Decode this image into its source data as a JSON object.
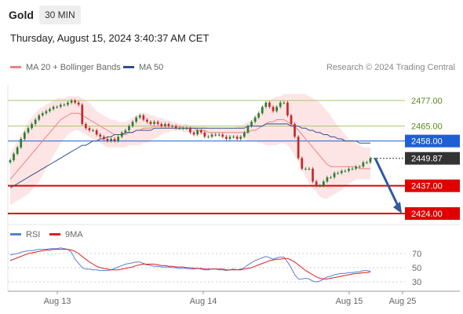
{
  "header": {
    "instrument": "Gold",
    "timeframe": "30 MIN",
    "datetime": "Thursday, August 15, 2024 3:40:37 AM CET"
  },
  "legend": {
    "ma20": {
      "label": "MA 20 + Bollinger Bands",
      "color": "#f08080"
    },
    "ma50": {
      "label": "MA 50",
      "color": "#2e4f8f"
    },
    "credit": "Research © 2024 Trading Central"
  },
  "sub_legend": {
    "rsi": {
      "label": "RSI",
      "color": "#5b7fd6"
    },
    "ma9": {
      "label": "9MA",
      "color": "#e02020"
    }
  },
  "colors": {
    "up_candle": "#2e7d32",
    "down_candle": "#c62828",
    "resistance": "#a5c96a",
    "pivot": "#1f5fd6",
    "support": "#e00000",
    "current": "#333333",
    "bollinger_fill": "#fde0e0",
    "arrow": "#2e5b9f"
  },
  "chart_data": [
    {
      "type": "candlestick",
      "title": "Gold 30 MIN",
      "xlabels": [
        "Aug 13",
        "Aug 14",
        "Aug 15",
        "Aug 25"
      ],
      "ylim": [
        2420,
        2484
      ],
      "levels": [
        {
          "value": 2477.0,
          "label": "2477.00",
          "kind": "resistance"
        },
        {
          "value": 2465.0,
          "label": "2465.00",
          "kind": "resistance"
        },
        {
          "value": 2458.0,
          "label": "2458.00",
          "kind": "pivot"
        },
        {
          "value": 2449.87,
          "label": "2449.87",
          "kind": "current"
        },
        {
          "value": 2437.0,
          "label": "2437.00",
          "kind": "support"
        },
        {
          "value": 2424.0,
          "label": "2424.00",
          "kind": "support"
        }
      ],
      "close": [
        2449,
        2452,
        2455,
        2459,
        2462,
        2464,
        2466,
        2468,
        2470,
        2471,
        2472,
        2473,
        2474,
        2474,
        2475,
        2475,
        2476,
        2477,
        2476,
        2475,
        2466,
        2464,
        2463,
        2463,
        2461,
        2460,
        2459,
        2458,
        2459,
        2458,
        2460,
        2462,
        2463,
        2465,
        2467,
        2469,
        2470,
        2468,
        2467,
        2466,
        2467,
        2466,
        2465,
        2466,
        2465,
        2465,
        2464,
        2464,
        2464,
        2464,
        2462,
        2461,
        2463,
        2462,
        2460,
        2460,
        2461,
        2461,
        2461,
        2460,
        2459,
        2460,
        2460,
        2459,
        2460,
        2462,
        2465,
        2467,
        2469,
        2471,
        2474,
        2476,
        2474,
        2472,
        2474,
        2476,
        2476,
        2470,
        2466,
        2460,
        2450,
        2445,
        2445,
        2445,
        2439,
        2437,
        2437,
        2439,
        2441,
        2441,
        2443,
        2443,
        2444,
        2444,
        2445,
        2445,
        2446,
        2446,
        2448,
        2448,
        2449.87
      ],
      "ma20": [
        2440,
        2442,
        2444,
        2446,
        2448,
        2450,
        2452,
        2454,
        2456,
        2458,
        2460,
        2462,
        2464,
        2466,
        2468,
        2469,
        2470,
        2471,
        2471,
        2471,
        2470,
        2469,
        2468,
        2467,
        2466,
        2465,
        2464,
        2463,
        2462,
        2461,
        2461,
        2461,
        2461,
        2462,
        2462,
        2463,
        2463,
        2464,
        2464,
        2464,
        2465,
        2465,
        2465,
        2465,
        2465,
        2465,
        2465,
        2465,
        2464,
        2464,
        2464,
        2464,
        2463,
        2463,
        2463,
        2462,
        2462,
        2462,
        2462,
        2462,
        2462,
        2462,
        2462,
        2462,
        2462,
        2462,
        2462,
        2463,
        2463,
        2464,
        2465,
        2466,
        2467,
        2467,
        2468,
        2468,
        2468,
        2467,
        2466,
        2465,
        2463,
        2461,
        2459,
        2457,
        2455,
        2453,
        2451,
        2449,
        2447,
        2446,
        2446,
        2446,
        2446,
        2446,
        2446,
        2446,
        2446,
        2445,
        2445,
        2445,
        2445
      ],
      "ma50": [
        2436,
        2437,
        2438,
        2439,
        2440,
        2441,
        2442,
        2443,
        2444,
        2445,
        2446,
        2447,
        2448,
        2449,
        2450,
        2451,
        2452,
        2453,
        2454,
        2455,
        2456,
        2456,
        2457,
        2458,
        2458,
        2459,
        2459,
        2460,
        2460,
        2461,
        2461,
        2461,
        2462,
        2462,
        2462,
        2463,
        2463,
        2463,
        2463,
        2463,
        2464,
        2464,
        2464,
        2464,
        2464,
        2464,
        2464,
        2464,
        2464,
        2464,
        2464,
        2464,
        2464,
        2464,
        2464,
        2464,
        2464,
        2464,
        2464,
        2464,
        2464,
        2464,
        2464,
        2464,
        2464,
        2464,
        2465,
        2465,
        2465,
        2465,
        2465,
        2466,
        2466,
        2466,
        2466,
        2466,
        2466,
        2466,
        2465,
        2465,
        2465,
        2464,
        2464,
        2463,
        2463,
        2462,
        2462,
        2461,
        2461,
        2460,
        2460,
        2459,
        2459,
        2458,
        2458,
        2458,
        2458,
        2457,
        2457,
        2457,
        2457
      ],
      "bb_upper": [
        2452,
        2455,
        2458,
        2461,
        2464,
        2467,
        2469,
        2471,
        2473,
        2474,
        2475,
        2476,
        2477,
        2478,
        2478,
        2478,
        2479,
        2479,
        2479,
        2479,
        2478,
        2477,
        2476,
        2474,
        2472,
        2471,
        2470,
        2469,
        2468,
        2468,
        2467,
        2467,
        2467,
        2468,
        2469,
        2470,
        2471,
        2471,
        2471,
        2470,
        2470,
        2469,
        2469,
        2468,
        2468,
        2467,
        2467,
        2466,
        2466,
        2466,
        2465,
        2465,
        2465,
        2465,
        2465,
        2464,
        2464,
        2464,
        2464,
        2464,
        2464,
        2464,
        2464,
        2465,
        2465,
        2466,
        2467,
        2468,
        2470,
        2472,
        2474,
        2476,
        2477,
        2478,
        2479,
        2479,
        2480,
        2480,
        2480,
        2480,
        2480,
        2480,
        2480,
        2479,
        2478,
        2477,
        2476,
        2474,
        2472,
        2470,
        2467,
        2465,
        2463,
        2461,
        2459,
        2458,
        2457,
        2456,
        2455,
        2455,
        2455
      ],
      "bb_lower": [
        2428,
        2429,
        2430,
        2431,
        2432,
        2433,
        2435,
        2437,
        2439,
        2442,
        2445,
        2448,
        2451,
        2454,
        2457,
        2459,
        2461,
        2462,
        2463,
        2463,
        2462,
        2461,
        2460,
        2459,
        2458,
        2457,
        2456,
        2455,
        2455,
        2455,
        2455,
        2455,
        2455,
        2456,
        2456,
        2456,
        2456,
        2457,
        2457,
        2458,
        2459,
        2460,
        2461,
        2462,
        2462,
        2463,
        2463,
        2463,
        2462,
        2462,
        2462,
        2462,
        2461,
        2461,
        2461,
        2460,
        2460,
        2460,
        2460,
        2460,
        2460,
        2460,
        2460,
        2459,
        2459,
        2459,
        2458,
        2458,
        2458,
        2457,
        2457,
        2456,
        2456,
        2456,
        2456,
        2457,
        2457,
        2456,
        2454,
        2451,
        2448,
        2445,
        2441,
        2438,
        2436,
        2434,
        2432,
        2431,
        2431,
        2432,
        2433,
        2434,
        2435,
        2437,
        2438,
        2439,
        2440,
        2440,
        2440,
        2440,
        2440
      ],
      "forecast_arrow": {
        "from": 2450,
        "to": 2424
      }
    },
    {
      "type": "line",
      "title": "RSI",
      "ylim": [
        20,
        80
      ],
      "yticks": [
        70,
        50,
        30
      ],
      "ytick_labels": [
        "70",
        "50",
        "30"
      ],
      "rsi": [
        68,
        69,
        70,
        72,
        73,
        74,
        74,
        75,
        76,
        76,
        76,
        77,
        77,
        77,
        78,
        77,
        76,
        72,
        62,
        56,
        50,
        48,
        48,
        47,
        47,
        46,
        46,
        46,
        47,
        49,
        51,
        53,
        55,
        56,
        57,
        58,
        58,
        56,
        54,
        53,
        52,
        52,
        51,
        51,
        51,
        50,
        50,
        49,
        49,
        49,
        48,
        48,
        49,
        48,
        47,
        47,
        48,
        48,
        47,
        47,
        46,
        47,
        48,
        47,
        48,
        50,
        54,
        57,
        60,
        62,
        64,
        66,
        64,
        62,
        64,
        65,
        65,
        58,
        50,
        40,
        34,
        34,
        35,
        34,
        31,
        30,
        31,
        34,
        37,
        38,
        40,
        41,
        42,
        42,
        43,
        43,
        44,
        44,
        46,
        46,
        45
      ],
      "ma9": [
        60,
        62,
        64,
        66,
        68,
        70,
        71,
        72,
        73,
        74,
        75,
        75,
        76,
        76,
        76,
        76,
        76,
        75,
        73,
        70,
        66,
        62,
        58,
        55,
        52,
        50,
        49,
        48,
        47,
        47,
        47,
        48,
        49,
        50,
        51,
        53,
        54,
        55,
        55,
        55,
        55,
        54,
        53,
        53,
        52,
        52,
        51,
        51,
        51,
        50,
        50,
        49,
        49,
        49,
        48,
        48,
        48,
        48,
        48,
        48,
        47,
        47,
        47,
        47,
        47,
        48,
        49,
        50,
        52,
        54,
        56,
        58,
        60,
        61,
        62,
        62,
        63,
        63,
        61,
        58,
        54,
        50,
        46,
        43,
        40,
        37,
        35,
        34,
        34,
        35,
        36,
        37,
        38,
        39,
        40,
        41,
        42,
        42,
        43,
        43,
        44
      ]
    }
  ]
}
